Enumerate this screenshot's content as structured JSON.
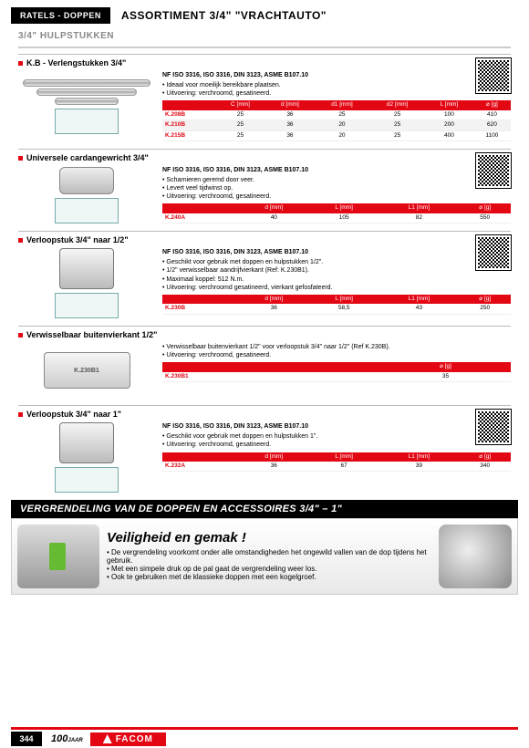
{
  "header": {
    "category": "RATELS - DOPPEN",
    "title": "ASSORTIMENT 3/4\" \"VRACHTAUTO\""
  },
  "subtitle": "3/4\" HULPSTUKKEN",
  "products": [
    {
      "title": "K.B - Verlengstukken 3/4\"",
      "spec": "NF ISO 3316, ISO 3316, DIN 3123, ASME B107.10",
      "bullets": [
        "Ideaal voor moeilijk bereikbare plaatsen.",
        "Uitvoering: verchroomd, gesatineerd."
      ],
      "cols": [
        "",
        "C [mm]",
        "d [mm]",
        "d1 [mm]",
        "d2 [mm]",
        "L [mm]",
        "⌀ [g]"
      ],
      "rows": [
        [
          "K.208B",
          "25",
          "36",
          "25",
          "25",
          "100",
          "410"
        ],
        [
          "K.210B",
          "25",
          "36",
          "20",
          "25",
          "200",
          "620"
        ],
        [
          "K.215B",
          "25",
          "36",
          "20",
          "25",
          "400",
          "1100"
        ]
      ]
    },
    {
      "title": "Universele cardangewricht 3/4\"",
      "spec": "NF ISO 3316, ISO 3316, DIN 3123, ASME B107.10",
      "bullets": [
        "Scharnieren geremd door veer.",
        "Levert veel tijdwinst op.",
        "Uitvoering: verchroomd, gesatineerd."
      ],
      "cols": [
        "",
        "d [mm]",
        "L [mm]",
        "L1 [mm]",
        "⌀ [g]"
      ],
      "rows": [
        [
          "K.240A",
          "40",
          "105",
          "82",
          "550"
        ]
      ]
    },
    {
      "title": "Verloopstuk 3/4\" naar 1/2\"",
      "spec": "NF ISO 3316, ISO 3316, DIN 3123, ASME B107.10",
      "bullets": [
        "Geschikt voor gebruik met doppen en hulpstukken 1/2\".",
        "1/2\" verwisselbaar aandrijfvierkant (Ref: K.230B1).",
        "Maximaal koppel: 512 N.m.",
        "Uitvoering: verchroomd gesatineerd, vierkant gefosfateerd."
      ],
      "cols": [
        "",
        "d [mm]",
        "L [mm]",
        "L1 [mm]",
        "⌀ [g]"
      ],
      "rows": [
        [
          "K.230B",
          "36",
          "58,5",
          "43",
          "250"
        ]
      ]
    },
    {
      "title": "Verwisselbaar buitenvierkant 1/2\"",
      "spec": "",
      "bullets": [
        "Verwisselbaar buitenvierkant 1/2\" voor verloopstuk 3/4\" naar 1/2\" (Ref K.230B).",
        "Uitvoering: verchroomd, gesatineerd."
      ],
      "cols": [
        "",
        "⌀ [g]"
      ],
      "rows": [
        [
          "K.230B1",
          "35"
        ]
      ]
    },
    {
      "title": "Verloopstuk 3/4\" naar 1\"",
      "spec": "NF ISO 3316, ISO 3316, DIN 3123, ASME B107.10",
      "bullets": [
        "Geschikt voor gebruik met doppen en hulpstukken 1\".",
        "Uitvoering: verchroomd, gesatineerd."
      ],
      "cols": [
        "",
        "d [mm]",
        "L [mm]",
        "L1 [mm]",
        "⌀ [g]"
      ],
      "rows": [
        [
          "K.232A",
          "36",
          "67",
          "39",
          "340"
        ]
      ]
    }
  ],
  "lock": {
    "header": "VERGRENDELING VAN DE DOPPEN EN ACCESSOIRES  3/4\" – 1\"",
    "title": "Veiligheid en gemak !",
    "bullets": [
      "De vergrendeling voorkomt onder alle omstandigheden het ongewild vallen van de dop tijdens het gebruik.",
      "Met een simpele druk op de pal gaat de vergrendeling weer los.",
      "Ook te gebruiken met de klassieke doppen met een kogelgroef."
    ]
  },
  "footer": {
    "page": "344",
    "years": "100",
    "years_suffix": "JAAR",
    "brand": "FACOM"
  }
}
